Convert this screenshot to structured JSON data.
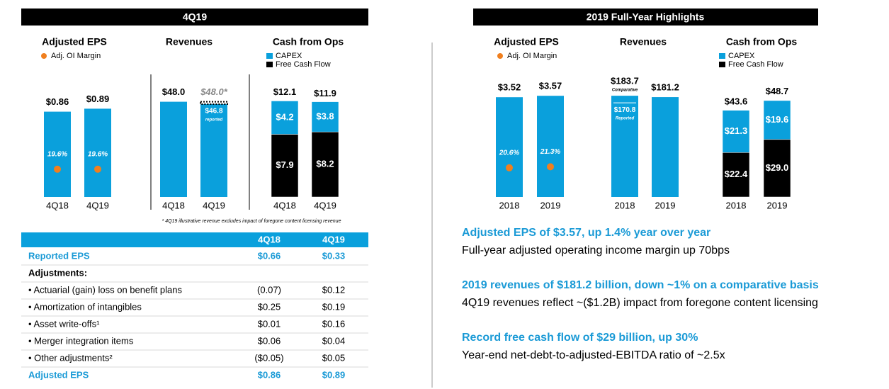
{
  "left_header": "4Q19",
  "right_header": "2019 Full-Year Highlights",
  "chart_data": [
    {
      "type": "bar",
      "title": "Adjusted EPS",
      "categories": [
        "4Q18",
        "4Q19"
      ],
      "values": [
        0.86,
        0.89
      ],
      "value_labels": [
        "$0.86",
        "$0.89"
      ],
      "color": "#0aa0dc",
      "ylim": [
        0,
        1
      ],
      "margin": {
        "name": "Adj. OI Margin",
        "color": "#f07f1e",
        "values": [
          19.6,
          19.6
        ],
        "value_labels": [
          "19.6%",
          "19.6%"
        ]
      },
      "y2lim": [
        0,
        70
      ]
    },
    {
      "type": "bar_overlay",
      "title": "Revenues",
      "categories": [
        "4Q18",
        "4Q19"
      ],
      "ylim": [
        0,
        50
      ],
      "series": [
        {
          "color": "#0aa0dc",
          "values": [
            48.0,
            46.8
          ],
          "value_labels": [
            "$48.0",
            "$46.8"
          ],
          "value_notes": [
            null,
            "reported"
          ]
        },
        {
          "color": "#000000",
          "style": "dotted",
          "values": [
            null,
            48.0
          ],
          "value_labels": [
            null,
            "$48.0*"
          ]
        }
      ]
    },
    {
      "type": "stacked_bar",
      "title": "Cash from Ops",
      "categories": [
        "4Q18",
        "4Q19"
      ],
      "ylim": [
        0,
        12.5
      ],
      "series": [
        {
          "name": "CAPEX",
          "color": "#0aa0dc",
          "values": [
            4.2,
            3.8
          ],
          "value_labels": [
            "$4.2",
            "$3.8"
          ]
        },
        {
          "name": "Free Cash Flow",
          "color": "#000000",
          "values": [
            7.9,
            8.2
          ],
          "value_labels": [
            "$7.9",
            "$8.2"
          ]
        }
      ],
      "totals": [
        12.1,
        11.9
      ],
      "total_labels": [
        "$12.1",
        "$11.9"
      ]
    },
    {
      "type": "bar",
      "title": "Adjusted EPS",
      "categories": [
        "2018",
        "2019"
      ],
      "values": [
        3.52,
        3.57
      ],
      "value_labels": [
        "$3.52",
        "$3.57"
      ],
      "color": "#0aa0dc",
      "ylim": [
        0,
        3.5
      ],
      "margin": {
        "name": "Adj. OI Margin",
        "color": "#f07f1e",
        "values": [
          20.6,
          21.3
        ],
        "value_labels": [
          "20.6%",
          "21.3%"
        ]
      },
      "y2lim": [
        0,
        70
      ]
    },
    {
      "type": "bar_overlay",
      "title": "Revenues",
      "categories": [
        "2018",
        "2019"
      ],
      "ylim": [
        0,
        180
      ],
      "series": [
        {
          "color": "#0aa0dc",
          "values": [
            183.7,
            181.2
          ],
          "value_labels": [
            "$183.7",
            "$181.2"
          ],
          "value_notes": [
            "Comparative",
            null
          ]
        },
        {
          "color": "#ffffff",
          "style": "line",
          "values": [
            170.8,
            null
          ],
          "value_labels": [
            "$170.8",
            null
          ],
          "value_notes": [
            "Reported",
            null
          ]
        }
      ]
    },
    {
      "type": "stacked_bar",
      "title": "Cash from Ops",
      "categories": [
        "2018",
        "2019"
      ],
      "ylim": [
        0,
        50
      ],
      "series": [
        {
          "name": "CAPEX",
          "color": "#0aa0dc",
          "values": [
            21.3,
            19.6
          ],
          "value_labels": [
            "$21.3",
            "$19.6"
          ]
        },
        {
          "name": "Free Cash Flow",
          "color": "#000000",
          "values": [
            22.4,
            29.0
          ],
          "value_labels": [
            "$22.4",
            "$29.0"
          ]
        }
      ],
      "totals": [
        43.6,
        48.7
      ],
      "total_labels": [
        "$43.6",
        "$48.7"
      ]
    }
  ],
  "footnote": "* 4Q19 illustrative revenue excludes impact of foregone content licensing revenue",
  "table": {
    "columns": [
      "4Q18",
      "4Q19"
    ],
    "rows": [
      [
        "Reported EPS",
        "$0.66",
        "$0.33"
      ],
      [
        "Adjustments:"
      ],
      [
        "• Actuarial (gain) loss on benefit plans",
        "(0.07)",
        "$0.12"
      ],
      [
        "• Amortization of intangibles",
        "$0.25",
        "$0.19"
      ],
      [
        "• Asset write-offs¹",
        "$0.01",
        "$0.16"
      ],
      [
        "• Merger integration items",
        "$0.06",
        "$0.04"
      ],
      [
        "• Other adjustments²",
        "($0.05)",
        "$0.05"
      ],
      [
        "Adjusted EPS",
        "$0.86",
        "$0.89"
      ]
    ]
  },
  "highlights": [
    {
      "title": "Adjusted EPS of $3.57, up 1.4% year over year",
      "text": "Full-year adjusted operating income margin up 70bps"
    },
    {
      "title": "2019 revenues of $181.2 billion, down ~1% on a comparative basis",
      "text": "4Q19 revenues reflect ~($1.2B) impact from foregone content licensing"
    },
    {
      "title": "Record free cash flow of $29 billion, up 30%",
      "text": "Year-end net-debt-to-adjusted-EBITDA ratio of ~2.5x"
    }
  ]
}
